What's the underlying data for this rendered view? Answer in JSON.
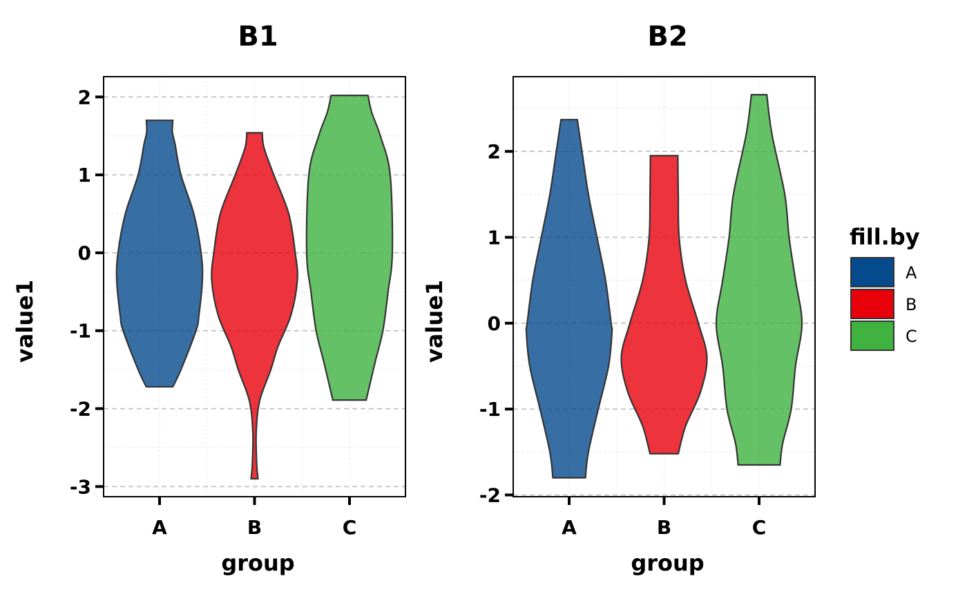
{
  "chart_data": [
    {
      "type": "violin",
      "title": "B1",
      "xlabel": "group",
      "ylabel": "value1",
      "categories": [
        "A",
        "B",
        "C"
      ],
      "ylim": [
        -3.13,
        2.26
      ],
      "yticks": [
        -3,
        -2,
        -1,
        0,
        1,
        2
      ],
      "ytick_labels": [
        "-3",
        "-2",
        "-1",
        "0",
        "1",
        "2"
      ],
      "grid": true,
      "violins": [
        {
          "group": "A",
          "profile": [
            [
              1.7,
              0.31
            ],
            [
              1.55,
              0.3
            ],
            [
              1.4,
              0.36
            ],
            [
              1.0,
              0.5
            ],
            [
              0.5,
              0.8
            ],
            [
              0.0,
              0.97
            ],
            [
              -0.35,
              1.0
            ],
            [
              -0.8,
              0.92
            ],
            [
              -1.0,
              0.85
            ],
            [
              -1.5,
              0.5
            ],
            [
              -1.72,
              0.31
            ]
          ]
        },
        {
          "group": "B",
          "profile": [
            [
              1.54,
              0.18
            ],
            [
              1.35,
              0.22
            ],
            [
              1.0,
              0.45
            ],
            [
              0.5,
              0.8
            ],
            [
              0.0,
              0.95
            ],
            [
              -0.35,
              1.0
            ],
            [
              -0.8,
              0.85
            ],
            [
              -1.2,
              0.55
            ],
            [
              -1.5,
              0.38
            ],
            [
              -1.9,
              0.12
            ],
            [
              -2.3,
              0.04
            ],
            [
              -2.7,
              0.05
            ],
            [
              -2.9,
              0.08
            ]
          ]
        },
        {
          "group": "C",
          "profile": [
            [
              2.02,
              0.43
            ],
            [
              1.8,
              0.52
            ],
            [
              1.5,
              0.72
            ],
            [
              1.0,
              0.95
            ],
            [
              0.0,
              1.0
            ],
            [
              -0.5,
              0.9
            ],
            [
              -1.0,
              0.78
            ],
            [
              -1.4,
              0.6
            ],
            [
              -1.89,
              0.39
            ]
          ]
        }
      ]
    },
    {
      "type": "violin",
      "title": "B2",
      "xlabel": "group",
      "ylabel": "value1",
      "categories": [
        "A",
        "B",
        "C"
      ],
      "ylim": [
        -2.02,
        2.87
      ],
      "yticks": [
        -2,
        -1,
        0,
        1,
        2
      ],
      "ytick_labels": [
        "-2",
        "-1",
        "0",
        "1",
        "2"
      ],
      "grid": true,
      "violins": [
        {
          "group": "A",
          "profile": [
            [
              2.37,
              0.19
            ],
            [
              2.0,
              0.3
            ],
            [
              1.5,
              0.45
            ],
            [
              1.0,
              0.65
            ],
            [
              0.5,
              0.85
            ],
            [
              0.0,
              0.98
            ],
            [
              -0.1,
              1.0
            ],
            [
              -0.5,
              0.92
            ],
            [
              -1.0,
              0.68
            ],
            [
              -1.5,
              0.45
            ],
            [
              -1.8,
              0.38
            ]
          ]
        },
        {
          "group": "B",
          "profile": [
            [
              1.95,
              0.32
            ],
            [
              1.5,
              0.33
            ],
            [
              1.0,
              0.35
            ],
            [
              0.5,
              0.5
            ],
            [
              0.0,
              0.8
            ],
            [
              -0.4,
              1.0
            ],
            [
              -0.8,
              0.85
            ],
            [
              -1.2,
              0.5
            ],
            [
              -1.52,
              0.33
            ]
          ]
        },
        {
          "group": "C",
          "profile": [
            [
              2.66,
              0.18
            ],
            [
              2.2,
              0.3
            ],
            [
              1.5,
              0.6
            ],
            [
              1.0,
              0.7
            ],
            [
              0.5,
              0.85
            ],
            [
              0.0,
              1.0
            ],
            [
              -0.5,
              0.85
            ],
            [
              -1.0,
              0.75
            ],
            [
              -1.4,
              0.55
            ],
            [
              -1.65,
              0.49
            ]
          ]
        }
      ]
    }
  ],
  "legend": {
    "title": "fill.by",
    "placement": "right",
    "items": [
      {
        "label": "A",
        "color": "#054a8c"
      },
      {
        "label": "B",
        "color": "#e8000b"
      },
      {
        "label": "C",
        "color": "#3fb23f"
      }
    ]
  },
  "violin_alpha": 0.8
}
